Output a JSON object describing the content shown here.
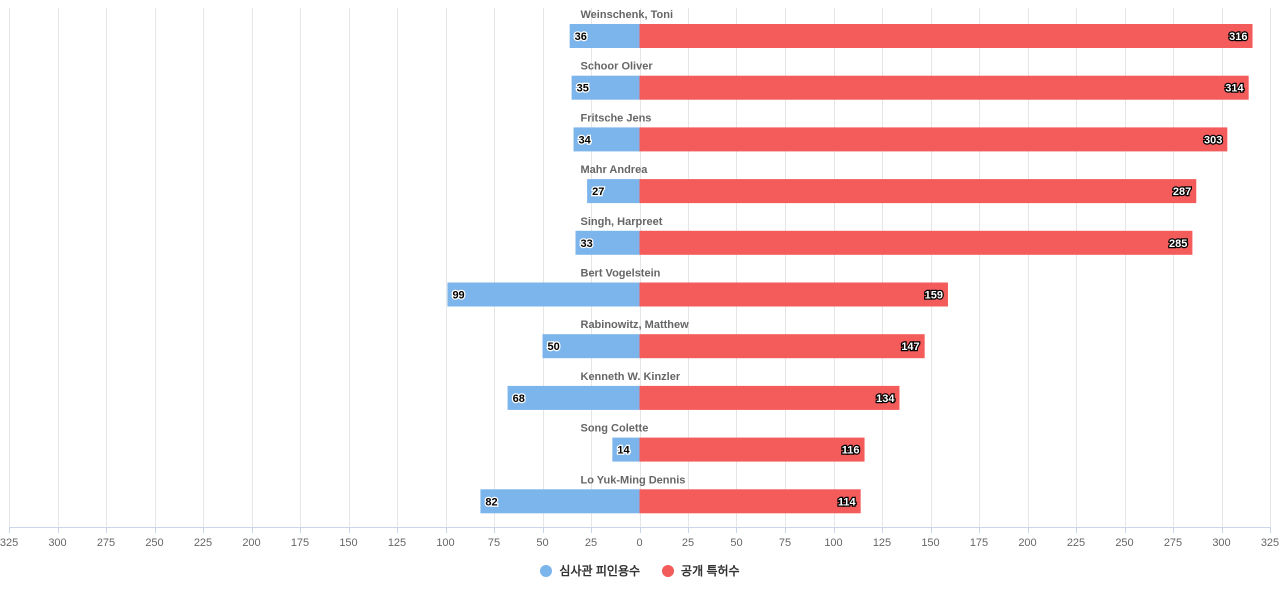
{
  "chart_data": {
    "type": "bar",
    "orientation": "horizontal-diverging",
    "categories": [
      "Weinschenk, Toni",
      "Schoor Oliver",
      "Fritsche Jens",
      "Mahr Andrea",
      "Singh, Harpreet",
      "Bert Vogelstein",
      "Rabinowitz, Matthew",
      "Kenneth W. Kinzler",
      "Song Colette",
      "Lo Yuk-Ming Dennis"
    ],
    "series": [
      {
        "name": "심사관 피인용수",
        "direction": "left",
        "color": "#7cb5ec",
        "values": [
          36,
          35,
          34,
          27,
          33,
          99,
          50,
          68,
          14,
          82
        ]
      },
      {
        "name": "공개 특허수",
        "direction": "right",
        "color": "#f45b5b",
        "values": [
          316,
          314,
          303,
          287,
          285,
          159,
          147,
          134,
          116,
          114
        ]
      }
    ],
    "xlim": [
      -325,
      325
    ],
    "ticks": [
      -325,
      -300,
      -275,
      -250,
      -225,
      -200,
      -175,
      -150,
      -125,
      -100,
      -75,
      -50,
      -25,
      0,
      25,
      50,
      75,
      100,
      125,
      150,
      175,
      200,
      225,
      250,
      275,
      300,
      325
    ],
    "tick_labels": [
      "325",
      "300",
      "275",
      "250",
      "225",
      "200",
      "175",
      "150",
      "125",
      "100",
      "75",
      "50",
      "25",
      "0",
      "25",
      "50",
      "75",
      "100",
      "125",
      "150",
      "175",
      "200",
      "225",
      "250",
      "275",
      "300",
      "325"
    ],
    "grid": true,
    "legend_position": "bottom-center"
  }
}
